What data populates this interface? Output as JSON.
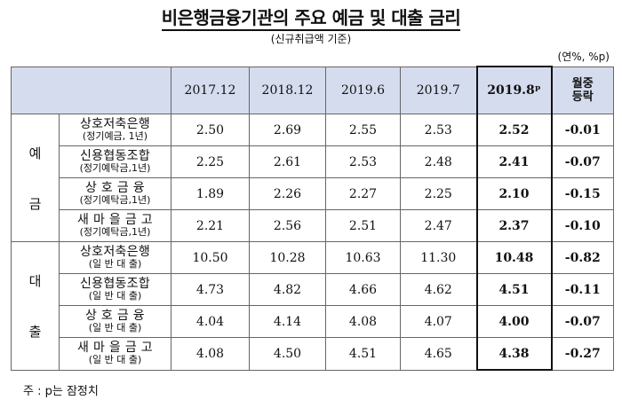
{
  "title": "비은행금융기관의 주요 예금 및 대출 금리",
  "subtitle": "(신규취급액 기준)",
  "unit": "(연%, %p)",
  "columns": [
    "2017.12",
    "2018.12",
    "2019.6",
    "2019.7",
    "2019.8ᵖ",
    "월중 등락"
  ],
  "change_header": [
    "월중",
    "등락"
  ],
  "groups": [
    {
      "label": [
        "예",
        "금"
      ],
      "rows": [
        {
          "name": "상호저축은행",
          "note": "(정기예금, 1년)",
          "values": [
            "2.50",
            "2.69",
            "2.55",
            "2.53",
            "2.52",
            "-0.01"
          ]
        },
        {
          "name": "신용협동조합",
          "note": "(정기예탁금,1년)",
          "values": [
            "2.25",
            "2.61",
            "2.53",
            "2.48",
            "2.41",
            "-0.07"
          ]
        },
        {
          "name": "상 호 금 융",
          "note": "(정기예탁금,1년)",
          "values": [
            "1.89",
            "2.26",
            "2.27",
            "2.25",
            "2.10",
            "-0.15"
          ]
        },
        {
          "name": "새 마 을 금 고",
          "note": "(정기예탁금,1년)",
          "values": [
            "2.21",
            "2.56",
            "2.51",
            "2.47",
            "2.37",
            "-0.10"
          ]
        }
      ]
    },
    {
      "label": [
        "대",
        "출"
      ],
      "rows": [
        {
          "name": "상호저축은행",
          "note": "(일 반 대 출)",
          "values": [
            "10.50",
            "10.28",
            "10.63",
            "11.30",
            "10.48",
            "-0.82"
          ]
        },
        {
          "name": "신용협동조합",
          "note": "(일 반 대 출)",
          "values": [
            "4.73",
            "4.82",
            "4.66",
            "4.62",
            "4.51",
            "-0.11"
          ]
        },
        {
          "name": "상 호 금 융",
          "note": "(일 반 대 출)",
          "values": [
            "4.04",
            "4.14",
            "4.08",
            "4.07",
            "4.00",
            "-0.07"
          ]
        },
        {
          "name": "새 마 을 금 고",
          "note": "(일 반 대 출)",
          "values": [
            "4.08",
            "4.50",
            "4.51",
            "4.65",
            "4.38",
            "-0.27"
          ]
        }
      ]
    }
  ],
  "footnote": "주 : p는 잠정치"
}
